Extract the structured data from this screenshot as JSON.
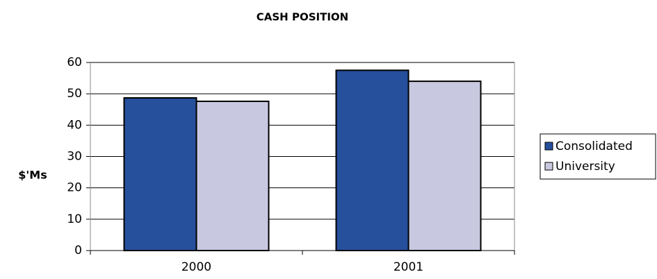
{
  "chart_data": {
    "type": "bar",
    "title": "CASH POSITION",
    "y_label": "$'Ms",
    "categories": [
      "2000",
      "2001"
    ],
    "series": [
      {
        "name": "Consolidated",
        "color": "#26509c",
        "values": [
          48.7,
          57.5
        ]
      },
      {
        "name": "University",
        "color": "#c8c8e0",
        "values": [
          47.6,
          54.0
        ]
      }
    ],
    "ylim": [
      0,
      60
    ],
    "yticks": [
      0,
      10,
      20,
      30,
      40,
      50,
      60
    ],
    "grid": true,
    "legend": "right"
  }
}
